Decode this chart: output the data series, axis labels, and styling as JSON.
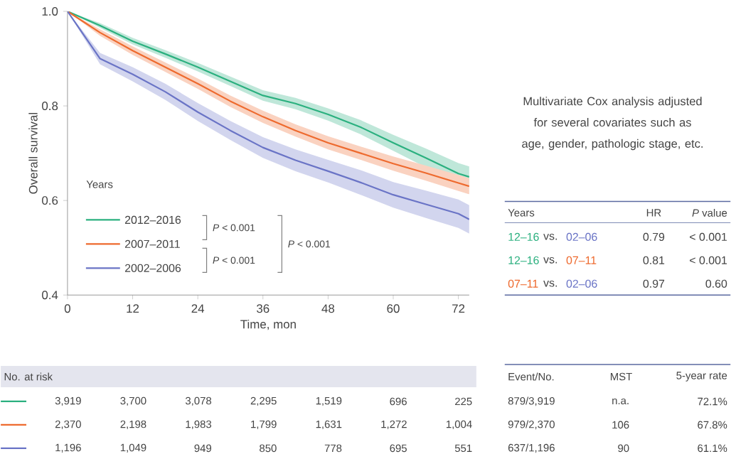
{
  "chart_data": {
    "type": "line",
    "xlabel": "Time, mon",
    "ylabel": "Overall survival",
    "legend_title": "Years",
    "xlim": [
      0,
      74
    ],
    "ylim": [
      0.4,
      1.0
    ],
    "xticks": [
      0,
      12,
      24,
      36,
      48,
      60,
      72
    ],
    "yticks": [
      0.4,
      0.6,
      0.8,
      {
        "value": 1.0,
        "label": "1.0"
      }
    ],
    "x": [
      0,
      6,
      12,
      18,
      24,
      30,
      36,
      42,
      48,
      54,
      60,
      66,
      72,
      74
    ],
    "series": [
      {
        "name": "2012–2016",
        "color": "#2bb07f",
        "values": [
          1.0,
          0.97,
          0.937,
          0.91,
          0.882,
          0.852,
          0.822,
          0.805,
          0.782,
          0.755,
          0.722,
          0.69,
          0.657,
          0.65
        ],
        "lower": [
          1.0,
          0.965,
          0.93,
          0.902,
          0.873,
          0.842,
          0.811,
          0.793,
          0.769,
          0.74,
          0.705,
          0.67,
          0.635,
          0.628
        ],
        "upper": [
          1.0,
          0.975,
          0.944,
          0.918,
          0.891,
          0.862,
          0.833,
          0.817,
          0.795,
          0.77,
          0.739,
          0.71,
          0.679,
          0.672
        ]
      },
      {
        "name": "2007–2011",
        "color": "#ee6a2e",
        "values": [
          1.0,
          0.955,
          0.917,
          0.882,
          0.847,
          0.81,
          0.777,
          0.748,
          0.722,
          0.7,
          0.678,
          0.658,
          0.637,
          0.63
        ],
        "lower": [
          1.0,
          0.948,
          0.908,
          0.872,
          0.836,
          0.798,
          0.764,
          0.735,
          0.708,
          0.686,
          0.663,
          0.642,
          0.62,
          0.613
        ],
        "upper": [
          1.0,
          0.962,
          0.926,
          0.892,
          0.858,
          0.822,
          0.79,
          0.761,
          0.736,
          0.714,
          0.693,
          0.674,
          0.654,
          0.647
        ]
      },
      {
        "name": "2002–2006",
        "color": "#6a74c6",
        "values": [
          1.0,
          0.9,
          0.867,
          0.83,
          0.787,
          0.748,
          0.712,
          0.685,
          0.662,
          0.638,
          0.612,
          0.592,
          0.572,
          0.56
        ],
        "lower": [
          1.0,
          0.888,
          0.852,
          0.813,
          0.768,
          0.728,
          0.69,
          0.662,
          0.638,
          0.612,
          0.585,
          0.563,
          0.542,
          0.53
        ],
        "upper": [
          1.0,
          0.912,
          0.882,
          0.847,
          0.806,
          0.768,
          0.734,
          0.708,
          0.686,
          0.664,
          0.639,
          0.621,
          0.602,
          0.59
        ]
      }
    ],
    "legend": "bottom left",
    "marker": "none",
    "line_style": "solid",
    "annotations": [
      "*P* < 0.001",
      "*P* < 0.001",
      "*P* < 0.001",
      "Multivariate Cox analysis adjusted for several covariates such as age, gender, pathologic stage, etc.",
      "Years",
      "HR",
      "*P* value",
      "12–16",
      "vs.",
      "02–06",
      "0.79",
      "< 0.001",
      "12–16",
      "vs.",
      "07–11",
      "0.81",
      "< 0.001",
      "07–11",
      "vs.",
      "02–06",
      "0.97",
      "0.60",
      "No. at risk",
      "3,919",
      "3,700",
      "3,078",
      "2,295",
      "1,519",
      "696",
      "225",
      "2,370",
      "2,198",
      "1,983",
      "1,799",
      "1,631",
      "1,272",
      "1,004",
      "1,196",
      "1,049",
      "949",
      "850",
      "778",
      "695",
      "551",
      "Event/No.",
      "MST",
      "5-year rate",
      "879/3,919",
      "n.a.",
      "72.1%",
      "979/2,370",
      "106",
      "67.8%",
      "637/1,196",
      "90",
      "61.1%"
    ]
  }
}
